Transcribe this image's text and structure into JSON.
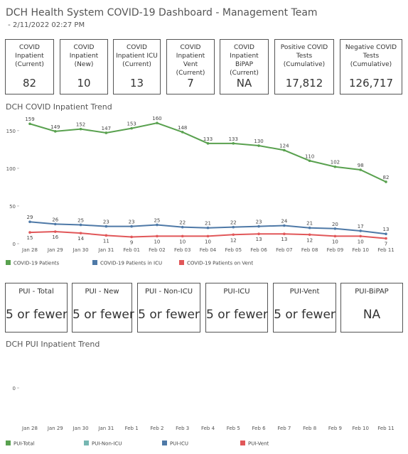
{
  "header": {
    "title": "DCH Health System COVID-19 Dashboard - Management Team",
    "subtitle": " - 2/11/2022 02:27 PM"
  },
  "kpis": [
    {
      "label": "COVID Inpatient (Current)",
      "value": "82"
    },
    {
      "label": "COVID Inpatient (New)",
      "value": "10"
    },
    {
      "label": "COVID Inpatient ICU (Current)",
      "value": "13"
    },
    {
      "label": "COVID Inpatient Vent (Current)",
      "value": "7"
    },
    {
      "label": "COVID Inpatient BiPAP (Current)",
      "value": "NA"
    },
    {
      "label": "Positive COVID Tests (Cumulative)",
      "value": "17,812"
    },
    {
      "label": "Negative COVID Tests (Cumulative)",
      "value": "126,717"
    }
  ],
  "pui": [
    {
      "label": "PUI - Total",
      "value": "5 or fewer"
    },
    {
      "label": "PUI - New",
      "value": "5 or fewer"
    },
    {
      "label": "PUI - Non-ICU",
      "value": "5 or fewer"
    },
    {
      "label": "PUI-ICU",
      "value": "5 or fewer"
    },
    {
      "label": "PUI-Vent",
      "value": "5 or fewer"
    },
    {
      "label": "PUI-BiPAP",
      "value": "NA"
    }
  ],
  "chart_data": [
    {
      "type": "line",
      "title": "DCH COVID Inpatient Trend",
      "categories": [
        "Jan 28",
        "Jan 29",
        "Jan 30",
        "Jan 31",
        "Feb 01",
        "Feb 02",
        "Feb 03",
        "Feb 04",
        "Feb 05",
        "Feb 06",
        "Feb 07",
        "Feb 08",
        "Feb 09",
        "Feb 10",
        "Feb 11"
      ],
      "series": [
        {
          "name": "COVID-19 Patients",
          "color": "#59a14f",
          "values": [
            159,
            149,
            152,
            147,
            153,
            160,
            148,
            133,
            133,
            130,
            124,
            110,
            102,
            98,
            82
          ]
        },
        {
          "name": "COVID-19 Patients in ICU",
          "color": "#4e79a7",
          "values": [
            29,
            26,
            25,
            23,
            23,
            25,
            22,
            21,
            22,
            23,
            24,
            21,
            20,
            17,
            13
          ]
        },
        {
          "name": "COVID-19 Patients on Vent",
          "color": "#e15759",
          "values": [
            15,
            16,
            14,
            11,
            9,
            10,
            10,
            10,
            12,
            13,
            13,
            12,
            10,
            10,
            7
          ]
        }
      ],
      "ylim": [
        0,
        163
      ],
      "yticks": [
        0,
        50,
        100,
        150
      ],
      "data_labels": true
    },
    {
      "type": "line",
      "title": "DCH PUI Inpatient Trend",
      "categories": [
        "Jan 28",
        "Jan 29",
        "Jan 30",
        "Jan 31",
        "Feb 1",
        "Feb 2",
        "Feb 3",
        "Feb 4",
        "Feb 5",
        "Feb 6",
        "Feb 7",
        "Feb 8",
        "Feb 9",
        "Feb 10",
        "Feb 11"
      ],
      "series": [
        {
          "name": "PUI-Total",
          "color": "#59a14f",
          "values": [
            null,
            null,
            null,
            null,
            null,
            null,
            null,
            null,
            null,
            null,
            null,
            null,
            null,
            null,
            null
          ]
        },
        {
          "name": "PUI-Non-ICU",
          "color": "#76b7b2",
          "values": [
            null,
            null,
            null,
            null,
            null,
            null,
            null,
            null,
            null,
            null,
            null,
            null,
            null,
            null,
            null
          ]
        },
        {
          "name": "PUI-ICU",
          "color": "#4e79a7",
          "values": [
            null,
            null,
            null,
            null,
            null,
            null,
            null,
            null,
            null,
            null,
            null,
            null,
            null,
            null,
            null
          ]
        },
        {
          "name": "PUI-Vent",
          "color": "#e15759",
          "values": [
            null,
            null,
            null,
            null,
            null,
            null,
            null,
            null,
            null,
            null,
            null,
            null,
            null,
            null,
            null
          ]
        }
      ],
      "ylim": [
        -1,
        1
      ],
      "yticks": [
        0
      ],
      "data_labels": true
    }
  ]
}
